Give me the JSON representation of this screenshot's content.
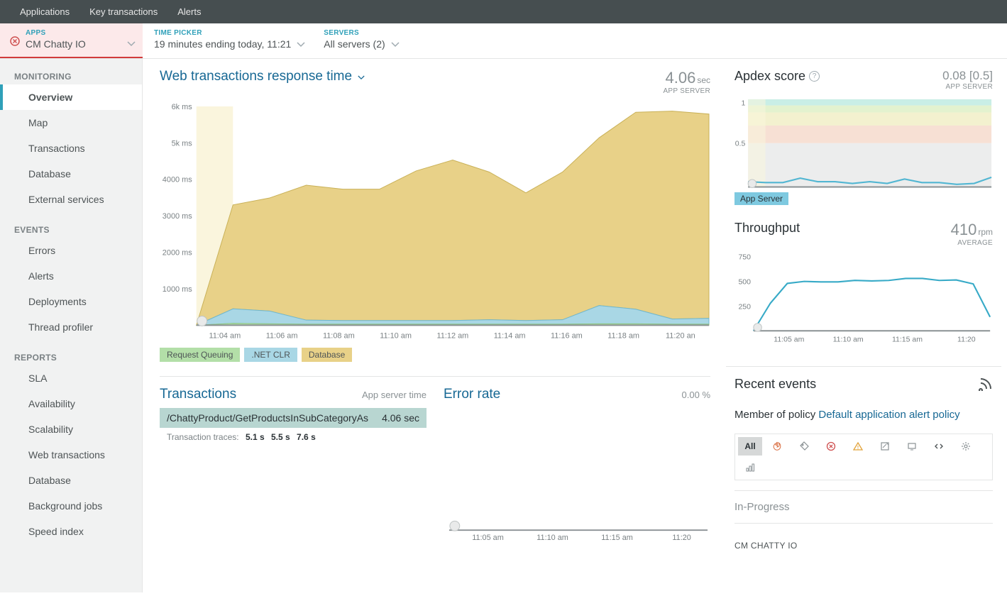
{
  "topnav": {
    "items": [
      "Applications",
      "Key transactions",
      "Alerts"
    ]
  },
  "filter": {
    "apps_label": "APPS",
    "apps_value": "CM Chatty IO",
    "time_label": "TIME PICKER",
    "time_value": "19 minutes ending today, 11:21",
    "servers_label": "SERVERS",
    "servers_value": "All servers (2)"
  },
  "sidebar": {
    "sections": [
      {
        "title": "MONITORING",
        "items": [
          "Overview",
          "Map",
          "Transactions",
          "Database",
          "External services"
        ]
      },
      {
        "title": "EVENTS",
        "items": [
          "Errors",
          "Alerts",
          "Deployments",
          "Thread profiler"
        ]
      },
      {
        "title": "REPORTS",
        "items": [
          "SLA",
          "Availability",
          "Scalability",
          "Web transactions",
          "Database",
          "Background jobs",
          "Speed index"
        ]
      }
    ],
    "active": "Overview"
  },
  "response_chart": {
    "title": "Web transactions response time",
    "value": "4.06",
    "unit": "sec",
    "subtitle": "APP SERVER",
    "y_ticks": [
      "6k ms",
      "5k ms",
      "4000 ms",
      "3000 ms",
      "2000 ms",
      "1000 ms"
    ],
    "y_max": 6000,
    "x_labels": [
      "11:04 am",
      "11:06 am",
      "11:08 am",
      "11:10 am",
      "11:12 am",
      "11:14 am",
      "11:16 am",
      "11:18 am",
      "11:20 an"
    ],
    "series_db": {
      "color": "#e8d188",
      "points": [
        0,
        2850,
        3100,
        3700,
        3600,
        3600,
        4100,
        4400,
        4050,
        3500,
        4050,
        4600,
        5400,
        5700,
        5600
      ]
    },
    "series_clr": {
      "color": "#a9d7e5",
      "points": [
        0,
        400,
        350,
        110,
        100,
        100,
        100,
        100,
        120,
        100,
        120,
        500,
        400,
        140,
        160
      ]
    },
    "series_queue": {
      "color": "#b3dfa8",
      "points": [
        0,
        50,
        40,
        30,
        30,
        30,
        30,
        30,
        30,
        30,
        30,
        40,
        40,
        30,
        30
      ]
    },
    "band_end_idx": 1,
    "legend": [
      {
        "label": "Request Queuing",
        "bg": "#b3dfa8"
      },
      {
        "label": ".NET CLR",
        "bg": "#a9d7e5"
      },
      {
        "label": "Database",
        "bg": "#e8d188"
      }
    ]
  },
  "transactions": {
    "title": "Transactions",
    "subtitle": "App server time",
    "row": {
      "name": "/ChattyProduct/GetProductsInSubCategoryAs",
      "time": "4.06 sec"
    },
    "traces_label": "Transaction traces:",
    "traces": [
      "5.1 s",
      "5.5 s",
      "7.6 s"
    ]
  },
  "error_rate": {
    "title": "Error rate",
    "value": "0.00",
    "unit": "%",
    "x_labels": [
      "11:05 am",
      "11:10 am",
      "11:15 am",
      "11:20"
    ]
  },
  "apdex": {
    "title": "Apdex score",
    "value": "0.08 [0.5]",
    "subtitle": "APP SERVER",
    "y_ticks": [
      "1",
      "0.5"
    ],
    "bands": [
      {
        "from": 0.93,
        "to": 1.0,
        "color": "#c9eee6"
      },
      {
        "from": 0.85,
        "to": 0.93,
        "color": "#e3f2cf"
      },
      {
        "from": 0.7,
        "to": 0.85,
        "color": "#f3f1cf"
      },
      {
        "from": 0.5,
        "to": 0.7,
        "color": "#f7e0d4"
      }
    ],
    "zero_band_color": "#eceded",
    "line_color": "#52b6d2",
    "points": [
      0.06,
      0.05,
      0.05,
      0.1,
      0.06,
      0.06,
      0.04,
      0.06,
      0.04,
      0.09,
      0.05,
      0.05,
      0.03,
      0.04,
      0.11
    ],
    "band_end_idx": 1,
    "legend_label": "App Server"
  },
  "throughput": {
    "title": "Throughput",
    "value": "410",
    "unit": "rpm",
    "subtitle": "AVERAGE",
    "y_ticks": [
      "750",
      "500",
      "250"
    ],
    "y_max": 750,
    "x_labels": [
      "11:05 am",
      "11:10 am",
      "11:15 am",
      "11:20"
    ],
    "line_color": "#37aac7",
    "points": [
      0,
      280,
      480,
      500,
      495,
      495,
      510,
      505,
      510,
      530,
      530,
      510,
      515,
      475,
      140
    ]
  },
  "events": {
    "title": "Recent events",
    "policy_prefix": "Member of policy ",
    "policy_link": "Default application alert policy",
    "filter_all": "All",
    "inprogress": "In-Progress",
    "item": "CM CHATTY IO"
  },
  "colors": {
    "axis": "#9faab0",
    "teal": "#2fa0b9",
    "link": "#176894",
    "fire": "#d96b3d",
    "red": "#cf5151",
    "amber": "#e2a33b",
    "grey": "#8a9194"
  }
}
